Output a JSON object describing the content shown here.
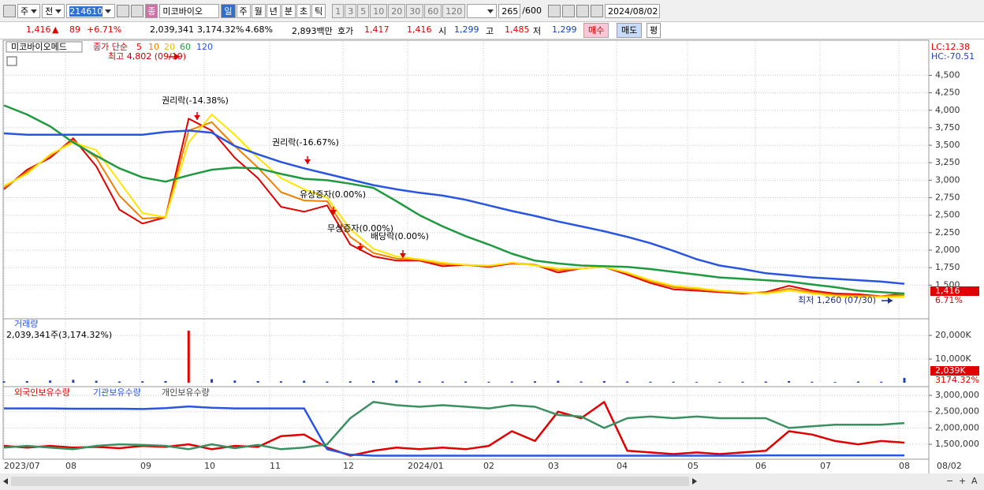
{
  "toolbar": {
    "market": "주",
    "scope": "전",
    "code": "214610",
    "name_tag": "종",
    "name": "미코바이오",
    "periods": [
      "일",
      "주",
      "월",
      "년",
      "분",
      "초",
      "틱"
    ],
    "intervals": [
      "1",
      "3",
      "5",
      "10",
      "20",
      "30",
      "60",
      "120"
    ],
    "count": "265",
    "max_count": "/600",
    "date": "2024/08/02"
  },
  "info_bar": [
    "1,416",
    "▲",
    "89",
    "+6.71%",
    "2,039,341",
    "3,174.32%",
    "4.68%",
    "2,893백만",
    "호가",
    "1,417",
    "1,416",
    "시",
    "1,299",
    "고",
    "1,485",
    "저",
    "1,299",
    "매수",
    "매도",
    "평"
  ],
  "price_chart": {
    "type": "line",
    "stock_name": "미코바이오메드",
    "legend_prefix": "종가 단순",
    "lc": "LC:12.38",
    "hc": "HC:-70.51",
    "current_label": "1,416",
    "current_change": "6.71%",
    "annotations": [
      "최고 4,802 (09/19)",
      "권리락(-14.38%)",
      "권리락(-16.67%)",
      "유상증자(0.00%)",
      "무상증자(0.00%)",
      "배당락(0.00%)",
      "최저 1,260 (07/30)"
    ],
    "ylim": [
      1030,
      4990
    ],
    "yticks": [
      {
        "value": 1500,
        "label": "1,500"
      },
      {
        "value": 1750,
        "label": "1,750"
      },
      {
        "value": 2000,
        "label": "2,000"
      },
      {
        "value": 2250,
        "label": "2,250"
      },
      {
        "value": 2500,
        "label": "2,500"
      },
      {
        "value": 2750,
        "label": "2,750"
      },
      {
        "value": 3000,
        "label": "3,000"
      },
      {
        "value": 3250,
        "label": "3,250"
      },
      {
        "value": 3500,
        "label": "3,500"
      },
      {
        "value": 3750,
        "label": "3,750"
      },
      {
        "value": 4000,
        "label": "4,000"
      },
      {
        "value": 4250,
        "label": "4,250"
      },
      {
        "value": 4500,
        "label": "4,500"
      }
    ],
    "series": [
      {
        "name": "5",
        "color": "#e00000",
        "values": [
          2870,
          3150,
          3320,
          3600,
          3200,
          2580,
          2380,
          2470,
          3880,
          3710,
          3320,
          3030,
          2620,
          2550,
          2640,
          2080,
          1910,
          1850,
          1850,
          1770,
          1790,
          1760,
          1810,
          1790,
          1680,
          1740,
          1760,
          1650,
          1530,
          1440,
          1420,
          1400,
          1380,
          1400,
          1490,
          1420,
          1380,
          1370,
          1340,
          1380
        ]
      },
      {
        "name": "10",
        "color": "#f08000",
        "values": [
          2890,
          3120,
          3350,
          3570,
          3320,
          2780,
          2450,
          2470,
          3710,
          3830,
          3490,
          3180,
          2830,
          2710,
          2700,
          2190,
          1960,
          1880,
          1860,
          1800,
          1790,
          1770,
          1820,
          1790,
          1710,
          1740,
          1760,
          1670,
          1550,
          1470,
          1440,
          1410,
          1390,
          1390,
          1450,
          1400,
          1360,
          1350,
          1340,
          1360
        ]
      },
      {
        "name": "20",
        "color": "#ffe600",
        "values": [
          2920,
          3090,
          3370,
          3540,
          3430,
          2980,
          2530,
          2470,
          3540,
          3940,
          3650,
          3320,
          3030,
          2870,
          2750,
          2300,
          2020,
          1910,
          1870,
          1820,
          1790,
          1780,
          1820,
          1780,
          1740,
          1740,
          1760,
          1680,
          1570,
          1490,
          1460,
          1420,
          1400,
          1380,
          1420,
          1380,
          1340,
          1330,
          1330,
          1330
        ]
      },
      {
        "name": "60",
        "color": "#1f9a40",
        "values": [
          4070,
          3940,
          3770,
          3540,
          3350,
          3170,
          3040,
          2980,
          3070,
          3150,
          3180,
          3170,
          3090,
          3020,
          3000,
          2950,
          2890,
          2700,
          2500,
          2340,
          2200,
          2080,
          1950,
          1850,
          1810,
          1780,
          1770,
          1760,
          1730,
          1690,
          1650,
          1610,
          1590,
          1570,
          1550,
          1510,
          1470,
          1420,
          1400,
          1380
        ]
      },
      {
        "name": "120",
        "color": "#2a55e0",
        "values": [
          3670,
          3650,
          3650,
          3650,
          3650,
          3650,
          3650,
          3690,
          3710,
          3680,
          3490,
          3370,
          3260,
          3170,
          3090,
          3010,
          2930,
          2870,
          2820,
          2780,
          2720,
          2640,
          2560,
          2490,
          2410,
          2340,
          2270,
          2190,
          2100,
          1990,
          1870,
          1780,
          1730,
          1670,
          1640,
          1610,
          1590,
          1570,
          1550,
          1520
        ]
      }
    ]
  },
  "volume_chart": {
    "type": "bar",
    "title": "거래량",
    "summary": "2,039,341주(3,174.32%)",
    "current_label": "2,039K",
    "current_change": "3174.32%",
    "color": "#2040c0",
    "ylim": [
      0,
      26700
    ],
    "yticks": [
      {
        "value": 10000,
        "label": "10,000K"
      },
      {
        "value": 20000,
        "label": "20,000K"
      }
    ],
    "values": [
      600,
      700,
      900,
      1200,
      800,
      500,
      600,
      700,
      22000,
      1500,
      900,
      700,
      600,
      800,
      500,
      600,
      700,
      900,
      600,
      500,
      500,
      400,
      500,
      600,
      800,
      500,
      700,
      500,
      400,
      400,
      300,
      300,
      400,
      500,
      700,
      400,
      300,
      500,
      400,
      2039
    ]
  },
  "holdings_chart": {
    "type": "line",
    "ylim": [
      1090000,
      3220000
    ],
    "yticks": [
      {
        "value": 1500000,
        "label": "1,500,000"
      },
      {
        "value": 2000000,
        "label": "2,000,000"
      },
      {
        "value": 2500000,
        "label": "2,500,000"
      },
      {
        "value": 3000000,
        "label": "3,000,000"
      }
    ],
    "series": [
      {
        "name": "외국인보유수량",
        "color": "#e00000",
        "values": [
          1450000,
          1400000,
          1450000,
          1400000,
          1420000,
          1380000,
          1450000,
          1420000,
          1500000,
          1350000,
          1450000,
          1420000,
          1750000,
          1800000,
          1400000,
          1150000,
          1300000,
          1400000,
          1350000,
          1400000,
          1350000,
          1450000,
          1900000,
          1600000,
          2500000,
          2300000,
          2800000,
          1300000,
          1250000,
          1200000,
          1250000,
          1200000,
          1250000,
          1300000,
          1900000,
          1800000,
          1600000,
          1500000,
          1600000,
          1550000
        ]
      },
      {
        "name": "기관보유수량",
        "color": "#2a55e0",
        "values": [
          2600000,
          2600000,
          2600000,
          2590000,
          2590000,
          2590000,
          2580000,
          2610000,
          2660000,
          2620000,
          2600000,
          2600000,
          2600000,
          2600000,
          1350000,
          1180000,
          1150000,
          1150000,
          1150000,
          1150000,
          1150000,
          1150000,
          1150000,
          1150000,
          1150000,
          1150000,
          1150000,
          1150000,
          1150000,
          1150000,
          1150000,
          1150000,
          1150000,
          1160000,
          1160000,
          1160000,
          1160000,
          1160000,
          1160000,
          1160000
        ]
      },
      {
        "name": "개인보유수량",
        "color": "#3a9060",
        "values": [
          1400000,
          1450000,
          1400000,
          1350000,
          1450000,
          1500000,
          1480000,
          1450000,
          1350000,
          1500000,
          1380000,
          1480000,
          1350000,
          1400000,
          1500000,
          2300000,
          2800000,
          2700000,
          2650000,
          2700000,
          2650000,
          2600000,
          2700000,
          2650000,
          2400000,
          2350000,
          2000000,
          2300000,
          2350000,
          2300000,
          2350000,
          2300000,
          2300000,
          2300000,
          2000000,
          2050000,
          2100000,
          2100000,
          2100000,
          2150000
        ]
      }
    ]
  },
  "x_axis": {
    "labels": [
      "2023/07",
      "08",
      "09",
      "10",
      "11",
      "12",
      "2024/01",
      "02",
      "03",
      "04",
      "05",
      "06",
      "07",
      "08"
    ],
    "last_date": "08/02"
  },
  "bottom_bar": {
    "zoom_out": "−",
    "zoom_in": "+",
    "font": "A"
  }
}
